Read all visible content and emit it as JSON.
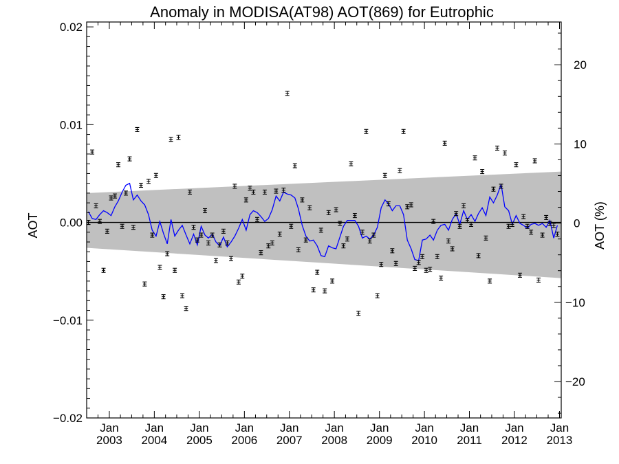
{
  "chart_data": {
    "type": "scatter",
    "title": "Anomaly in MODISA(AT98) AOT(869) for Eutrophic",
    "ylabel": "AOT",
    "ylabel_right": "AOT (%)",
    "ylim": [
      -0.02,
      0.0205
    ],
    "ylim_right": [
      -24.6,
      25.4
    ],
    "xlim": [
      "2002-07-01",
      "2013-01-15"
    ],
    "yticks": [
      -0.02,
      -0.01,
      0.0,
      0.01,
      0.02
    ],
    "ytick_labels": [
      "−0.02",
      "−0.01",
      "0.00",
      "0.01",
      "0.02"
    ],
    "yticks_right": [
      -20,
      -10,
      0,
      10,
      20
    ],
    "ytick_labels_right": [
      "−20",
      "−10",
      "0",
      "10",
      "20"
    ],
    "xticks": [
      {
        "date": "2003-01-01",
        "month": "Jan",
        "year": "2003"
      },
      {
        "date": "2004-01-01",
        "month": "Jan",
        "year": "2004"
      },
      {
        "date": "2005-01-01",
        "month": "Jan",
        "year": "2005"
      },
      {
        "date": "2006-01-01",
        "month": "Jan",
        "year": "2006"
      },
      {
        "date": "2007-01-01",
        "month": "Jan",
        "year": "2007"
      },
      {
        "date": "2008-01-01",
        "month": "Jan",
        "year": "2008"
      },
      {
        "date": "2009-01-01",
        "month": "Jan",
        "year": "2009"
      },
      {
        "date": "2010-01-01",
        "month": "Jan",
        "year": "2010"
      },
      {
        "date": "2011-01-01",
        "month": "Jan",
        "year": "2011"
      },
      {
        "date": "2012-01-01",
        "month": "Jan",
        "year": "2012"
      },
      {
        "date": "2013-01-01",
        "month": "Jan",
        "year": "2013"
      }
    ],
    "band": {
      "start_date": "2002-07-01",
      "end_date": "2013-01-15",
      "upper": [
        0.003,
        0.0052
      ],
      "lower": [
        -0.0026,
        -0.0057
      ],
      "color": "#c0c0c0"
    },
    "zero_line": 0,
    "points": [
      {
        "x": "2002-07-15",
        "y": 0.0
      },
      {
        "x": "2002-08-15",
        "y": 0.0072
      },
      {
        "x": "2002-09-15",
        "y": 0.0017
      },
      {
        "x": "2002-10-15",
        "y": 0.0001
      },
      {
        "x": "2002-11-15",
        "y": -0.0049
      },
      {
        "x": "2002-12-15",
        "y": -0.0009
      },
      {
        "x": "2003-01-15",
        "y": 0.0025
      },
      {
        "x": "2003-02-15",
        "y": 0.0027
      },
      {
        "x": "2003-03-15",
        "y": 0.0059
      },
      {
        "x": "2003-04-15",
        "y": -0.0004
      },
      {
        "x": "2003-05-15",
        "y": 0.003
      },
      {
        "x": "2003-06-15",
        "y": 0.0065
      },
      {
        "x": "2003-07-15",
        "y": -0.0005
      },
      {
        "x": "2003-08-15",
        "y": 0.0095
      },
      {
        "x": "2003-09-15",
        "y": 0.0038
      },
      {
        "x": "2003-10-15",
        "y": -0.0063
      },
      {
        "x": "2003-11-15",
        "y": 0.0042
      },
      {
        "x": "2003-12-15",
        "y": -0.0013
      },
      {
        "x": "2004-01-15",
        "y": 0.0048
      },
      {
        "x": "2004-02-15",
        "y": -0.0046
      },
      {
        "x": "2004-03-15",
        "y": -0.0076
      },
      {
        "x": "2004-04-15",
        "y": -0.0032
      },
      {
        "x": "2004-05-15",
        "y": 0.0085
      },
      {
        "x": "2004-06-15",
        "y": -0.0049
      },
      {
        "x": "2004-07-15",
        "y": 0.0087
      },
      {
        "x": "2004-08-15",
        "y": -0.0075
      },
      {
        "x": "2004-09-15",
        "y": -0.0088
      },
      {
        "x": "2004-10-15",
        "y": 0.0031
      },
      {
        "x": "2004-11-15",
        "y": -0.0005
      },
      {
        "x": "2004-12-15",
        "y": -0.0018
      },
      {
        "x": "2005-01-15",
        "y": -0.0013
      },
      {
        "x": "2005-02-15",
        "y": 0.0012
      },
      {
        "x": "2005-03-15",
        "y": -0.0021
      },
      {
        "x": "2005-04-15",
        "y": -0.0013
      },
      {
        "x": "2005-05-15",
        "y": -0.0039
      },
      {
        "x": "2005-06-15",
        "y": -0.0023
      },
      {
        "x": "2005-07-15",
        "y": -0.0009
      },
      {
        "x": "2005-08-15",
        "y": -0.0021
      },
      {
        "x": "2005-09-15",
        "y": -0.0037
      },
      {
        "x": "2005-10-15",
        "y": 0.0037
      },
      {
        "x": "2005-11-15",
        "y": -0.0061
      },
      {
        "x": "2005-12-15",
        "y": -0.0055
      },
      {
        "x": "2006-01-15",
        "y": 0.0023
      },
      {
        "x": "2006-02-15",
        "y": 0.0035
      },
      {
        "x": "2006-03-15",
        "y": 0.0031
      },
      {
        "x": "2006-04-15",
        "y": 0.0003
      },
      {
        "x": "2006-05-15",
        "y": -0.0031
      },
      {
        "x": "2006-06-15",
        "y": 0.0031
      },
      {
        "x": "2006-07-15",
        "y": -0.0024
      },
      {
        "x": "2006-08-15",
        "y": -0.0021
      },
      {
        "x": "2006-09-15",
        "y": 0.0032
      },
      {
        "x": "2006-10-15",
        "y": -0.0012
      },
      {
        "x": "2006-11-15",
        "y": 0.0033
      },
      {
        "x": "2006-12-15",
        "y": 0.0132
      },
      {
        "x": "2007-01-15",
        "y": -0.0004
      },
      {
        "x": "2007-02-15",
        "y": 0.0058
      },
      {
        "x": "2007-03-15",
        "y": -0.0028
      },
      {
        "x": "2007-04-15",
        "y": 0.0023
      },
      {
        "x": "2007-05-15",
        "y": -0.0018
      },
      {
        "x": "2007-06-15",
        "y": 0.0015
      },
      {
        "x": "2007-07-15",
        "y": -0.0069
      },
      {
        "x": "2007-08-15",
        "y": -0.0051
      },
      {
        "x": "2007-09-15",
        "y": -0.0008
      },
      {
        "x": "2007-10-15",
        "y": -0.007
      },
      {
        "x": "2007-11-15",
        "y": 0.001
      },
      {
        "x": "2007-12-15",
        "y": -0.006
      },
      {
        "x": "2008-01-15",
        "y": 0.0013
      },
      {
        "x": "2008-02-15",
        "y": -0.0001
      },
      {
        "x": "2008-03-15",
        "y": -0.0024
      },
      {
        "x": "2008-04-15",
        "y": -0.0017
      },
      {
        "x": "2008-05-15",
        "y": 0.006
      },
      {
        "x": "2008-06-15",
        "y": 0.0007
      },
      {
        "x": "2008-07-15",
        "y": -0.0093
      },
      {
        "x": "2008-08-15",
        "y": -0.001
      },
      {
        "x": "2008-09-15",
        "y": 0.0093
      },
      {
        "x": "2008-10-15",
        "y": -0.0019
      },
      {
        "x": "2008-11-15",
        "y": -0.0013
      },
      {
        "x": "2008-12-15",
        "y": -0.0075
      },
      {
        "x": "2009-01-15",
        "y": -0.0043
      },
      {
        "x": "2009-02-15",
        "y": 0.0048
      },
      {
        "x": "2009-03-15",
        "y": 0.0019
      },
      {
        "x": "2009-04-15",
        "y": -0.0029
      },
      {
        "x": "2009-05-15",
        "y": -0.0042
      },
      {
        "x": "2009-06-15",
        "y": 0.0053
      },
      {
        "x": "2009-07-15",
        "y": 0.0093
      },
      {
        "x": "2009-08-15",
        "y": 0.0016
      },
      {
        "x": "2009-09-15",
        "y": 0.0018
      },
      {
        "x": "2009-10-15",
        "y": -0.0047
      },
      {
        "x": "2009-11-15",
        "y": -0.0041
      },
      {
        "x": "2009-12-15",
        "y": -0.0035
      },
      {
        "x": "2010-01-15",
        "y": -0.0049
      },
      {
        "x": "2010-02-15",
        "y": -0.0048
      },
      {
        "x": "2010-03-15",
        "y": 0.0001
      },
      {
        "x": "2010-04-15",
        "y": -0.0035
      },
      {
        "x": "2010-05-15",
        "y": -0.0057
      },
      {
        "x": "2010-06-15",
        "y": 0.0081
      },
      {
        "x": "2010-07-15",
        "y": -0.0019
      },
      {
        "x": "2010-08-15",
        "y": -0.0027
      },
      {
        "x": "2010-09-15",
        "y": 0.0009
      },
      {
        "x": "2010-10-15",
        "y": -0.0004
      },
      {
        "x": "2010-11-15",
        "y": 0.0017
      },
      {
        "x": "2010-12-15",
        "y": 0.0002
      },
      {
        "x": "2011-01-15",
        "y": -0.0002
      },
      {
        "x": "2011-02-15",
        "y": 0.0066
      },
      {
        "x": "2011-03-15",
        "y": -0.0034
      },
      {
        "x": "2011-04-15",
        "y": 0.0052
      },
      {
        "x": "2011-05-15",
        "y": -0.0016
      },
      {
        "x": "2011-06-15",
        "y": -0.006
      },
      {
        "x": "2011-07-15",
        "y": 0.0034
      },
      {
        "x": "2011-08-15",
        "y": 0.0076
      },
      {
        "x": "2011-09-15",
        "y": 0.0037
      },
      {
        "x": "2011-10-15",
        "y": 0.0071
      },
      {
        "x": "2011-11-15",
        "y": -0.0004
      },
      {
        "x": "2011-12-15",
        "y": -0.0002
      },
      {
        "x": "2012-01-15",
        "y": 0.0059
      },
      {
        "x": "2012-02-15",
        "y": -0.0054
      },
      {
        "x": "2012-03-15",
        "y": 0.0006
      },
      {
        "x": "2012-04-15",
        "y": -0.0004
      },
      {
        "x": "2012-05-15",
        "y": -0.001
      },
      {
        "x": "2012-06-15",
        "y": 0.0063
      },
      {
        "x": "2012-07-15",
        "y": -0.0059
      },
      {
        "x": "2012-08-15",
        "y": -0.0013
      },
      {
        "x": "2012-09-15",
        "y": 0.0005
      },
      {
        "x": "2012-10-15",
        "y": -0.0001
      },
      {
        "x": "2012-11-15",
        "y": -0.0003
      },
      {
        "x": "2012-12-15",
        "y": -0.0012
      }
    ],
    "smoothed_line": {
      "color": "#0000ff",
      "points": [
        {
          "x": "2002-07-15",
          "y": 0.0011
        },
        {
          "x": "2002-08-15",
          "y": 0.0004
        },
        {
          "x": "2002-09-15",
          "y": 0.0003
        },
        {
          "x": "2002-10-15",
          "y": 0.0008
        },
        {
          "x": "2002-11-15",
          "y": 0.0012
        },
        {
          "x": "2002-12-15",
          "y": 0.001
        },
        {
          "x": "2003-01-15",
          "y": 0.0007
        },
        {
          "x": "2003-02-15",
          "y": 0.0016
        },
        {
          "x": "2003-03-15",
          "y": 0.0022
        },
        {
          "x": "2003-04-15",
          "y": 0.0031
        },
        {
          "x": "2003-05-15",
          "y": 0.0038
        },
        {
          "x": "2003-06-15",
          "y": 0.004
        },
        {
          "x": "2003-07-15",
          "y": 0.0023
        },
        {
          "x": "2003-08-15",
          "y": 0.0028
        },
        {
          "x": "2003-09-15",
          "y": 0.0022
        },
        {
          "x": "2003-10-15",
          "y": 0.0018
        },
        {
          "x": "2003-11-15",
          "y": 0.0008
        },
        {
          "x": "2003-12-15",
          "y": -0.0008
        },
        {
          "x": "2004-01-15",
          "y": -0.0014
        },
        {
          "x": "2004-02-15",
          "y": 0.0001
        },
        {
          "x": "2004-03-15",
          "y": -0.0011
        },
        {
          "x": "2004-04-15",
          "y": -0.0022
        },
        {
          "x": "2004-05-15",
          "y": 0.0003
        },
        {
          "x": "2004-06-15",
          "y": -0.0014
        },
        {
          "x": "2004-07-15",
          "y": -0.0008
        },
        {
          "x": "2004-08-15",
          "y": -0.0003
        },
        {
          "x": "2004-09-15",
          "y": -0.0013
        },
        {
          "x": "2004-10-15",
          "y": -0.0022
        },
        {
          "x": "2004-11-15",
          "y": -0.0012
        },
        {
          "x": "2004-12-15",
          "y": -0.0023
        },
        {
          "x": "2005-01-15",
          "y": -0.0004
        },
        {
          "x": "2005-02-15",
          "y": -0.0013
        },
        {
          "x": "2005-03-15",
          "y": -0.0016
        },
        {
          "x": "2005-04-15",
          "y": -0.0012
        },
        {
          "x": "2005-05-15",
          "y": -0.002
        },
        {
          "x": "2005-06-15",
          "y": -0.0024
        },
        {
          "x": "2005-07-15",
          "y": -0.0015
        },
        {
          "x": "2005-08-15",
          "y": -0.0025
        },
        {
          "x": "2005-09-15",
          "y": -0.002
        },
        {
          "x": "2005-10-15",
          "y": -0.0014
        },
        {
          "x": "2005-11-15",
          "y": -0.0006
        },
        {
          "x": "2005-12-15",
          "y": 0.0003
        },
        {
          "x": "2006-01-15",
          "y": -0.0008
        },
        {
          "x": "2006-02-15",
          "y": 0.0008
        },
        {
          "x": "2006-03-15",
          "y": 0.0012
        },
        {
          "x": "2006-04-15",
          "y": 0.001
        },
        {
          "x": "2006-05-15",
          "y": 0.0006
        },
        {
          "x": "2006-06-15",
          "y": 0.0001
        },
        {
          "x": "2006-07-15",
          "y": 0.0004
        },
        {
          "x": "2006-08-15",
          "y": 0.0013
        },
        {
          "x": "2006-09-15",
          "y": 0.0027
        },
        {
          "x": "2006-10-15",
          "y": 0.0022
        },
        {
          "x": "2006-11-15",
          "y": 0.0031
        },
        {
          "x": "2006-12-15",
          "y": 0.0029
        },
        {
          "x": "2007-01-15",
          "y": 0.0028
        },
        {
          "x": "2007-02-15",
          "y": 0.0025
        },
        {
          "x": "2007-03-15",
          "y": 0.0014
        },
        {
          "x": "2007-04-15",
          "y": -0.0003
        },
        {
          "x": "2007-05-15",
          "y": -0.0014
        },
        {
          "x": "2007-06-15",
          "y": -0.0019
        },
        {
          "x": "2007-07-15",
          "y": -0.0018
        },
        {
          "x": "2007-08-15",
          "y": -0.0024
        },
        {
          "x": "2007-09-15",
          "y": -0.0034
        },
        {
          "x": "2007-10-15",
          "y": -0.0035
        },
        {
          "x": "2007-11-15",
          "y": -0.0024
        },
        {
          "x": "2007-12-15",
          "y": -0.0026
        },
        {
          "x": "2008-01-15",
          "y": -0.0027
        },
        {
          "x": "2008-02-15",
          "y": -0.0015
        },
        {
          "x": "2008-03-15",
          "y": -0.0004
        },
        {
          "x": "2008-04-15",
          "y": 0.0002
        },
        {
          "x": "2008-05-15",
          "y": 0.0002
        },
        {
          "x": "2008-06-15",
          "y": 0.0002
        },
        {
          "x": "2008-07-15",
          "y": -0.0004
        },
        {
          "x": "2008-08-15",
          "y": -0.0016
        },
        {
          "x": "2008-09-15",
          "y": -0.0014
        },
        {
          "x": "2008-10-15",
          "y": -0.0017
        },
        {
          "x": "2008-11-15",
          "y": -0.0013
        },
        {
          "x": "2008-12-15",
          "y": -0.0005
        },
        {
          "x": "2009-01-15",
          "y": 0.0015
        },
        {
          "x": "2009-02-15",
          "y": 0.0023
        },
        {
          "x": "2009-03-15",
          "y": 0.0019
        },
        {
          "x": "2009-04-15",
          "y": 0.0012
        },
        {
          "x": "2009-05-15",
          "y": 0.0017
        },
        {
          "x": "2009-06-15",
          "y": 0.0017
        },
        {
          "x": "2009-07-15",
          "y": 0.0008
        },
        {
          "x": "2009-08-15",
          "y": -0.0018
        },
        {
          "x": "2009-09-15",
          "y": -0.0027
        },
        {
          "x": "2009-10-15",
          "y": -0.0038
        },
        {
          "x": "2009-11-15",
          "y": -0.0039
        },
        {
          "x": "2009-12-15",
          "y": -0.0018
        },
        {
          "x": "2010-01-15",
          "y": -0.0017
        },
        {
          "x": "2010-02-15",
          "y": -0.0013
        },
        {
          "x": "2010-03-15",
          "y": -0.0018
        },
        {
          "x": "2010-04-15",
          "y": -0.0008
        },
        {
          "x": "2010-05-15",
          "y": -0.0003
        },
        {
          "x": "2010-06-15",
          "y": -0.0002
        },
        {
          "x": "2010-07-15",
          "y": -0.0008
        },
        {
          "x": "2010-08-15",
          "y": 0.0003
        },
        {
          "x": "2010-09-15",
          "y": 0.0009
        },
        {
          "x": "2010-10-15",
          "y": -0.0002
        },
        {
          "x": "2010-11-15",
          "y": 0.0012
        },
        {
          "x": "2010-12-15",
          "y": 0.0003
        },
        {
          "x": "2011-01-15",
          "y": 0.0008
        },
        {
          "x": "2011-02-15",
          "y": 0.0001
        },
        {
          "x": "2011-03-15",
          "y": 0.0009
        },
        {
          "x": "2011-04-15",
          "y": 0.0015
        },
        {
          "x": "2011-05-15",
          "y": 0.0007
        },
        {
          "x": "2011-06-15",
          "y": 0.0026
        },
        {
          "x": "2011-07-15",
          "y": 0.002
        },
        {
          "x": "2011-08-15",
          "y": 0.0028
        },
        {
          "x": "2011-09-15",
          "y": 0.0039
        },
        {
          "x": "2011-10-15",
          "y": 0.0016
        },
        {
          "x": "2011-11-15",
          "y": 0.0012
        },
        {
          "x": "2011-12-15",
          "y": -0.0002
        },
        {
          "x": "2012-01-15",
          "y": 0.0007
        },
        {
          "x": "2012-02-15",
          "y": -0.0001
        },
        {
          "x": "2012-03-15",
          "y": -0.0003
        },
        {
          "x": "2012-04-15",
          "y": -0.0006
        },
        {
          "x": "2012-05-15",
          "y": -0.0002
        },
        {
          "x": "2012-06-15",
          "y": -0.0001
        },
        {
          "x": "2012-07-15",
          "y": -0.0003
        },
        {
          "x": "2012-08-15",
          "y": -0.0001
        },
        {
          "x": "2012-09-15",
          "y": -0.0005
        },
        {
          "x": "2012-10-15",
          "y": 0.0002
        },
        {
          "x": "2012-11-15",
          "y": -0.0016
        },
        {
          "x": "2012-12-15",
          "y": -0.0003
        }
      ]
    },
    "grid": false,
    "legend": "none",
    "point_color": "#000000"
  }
}
